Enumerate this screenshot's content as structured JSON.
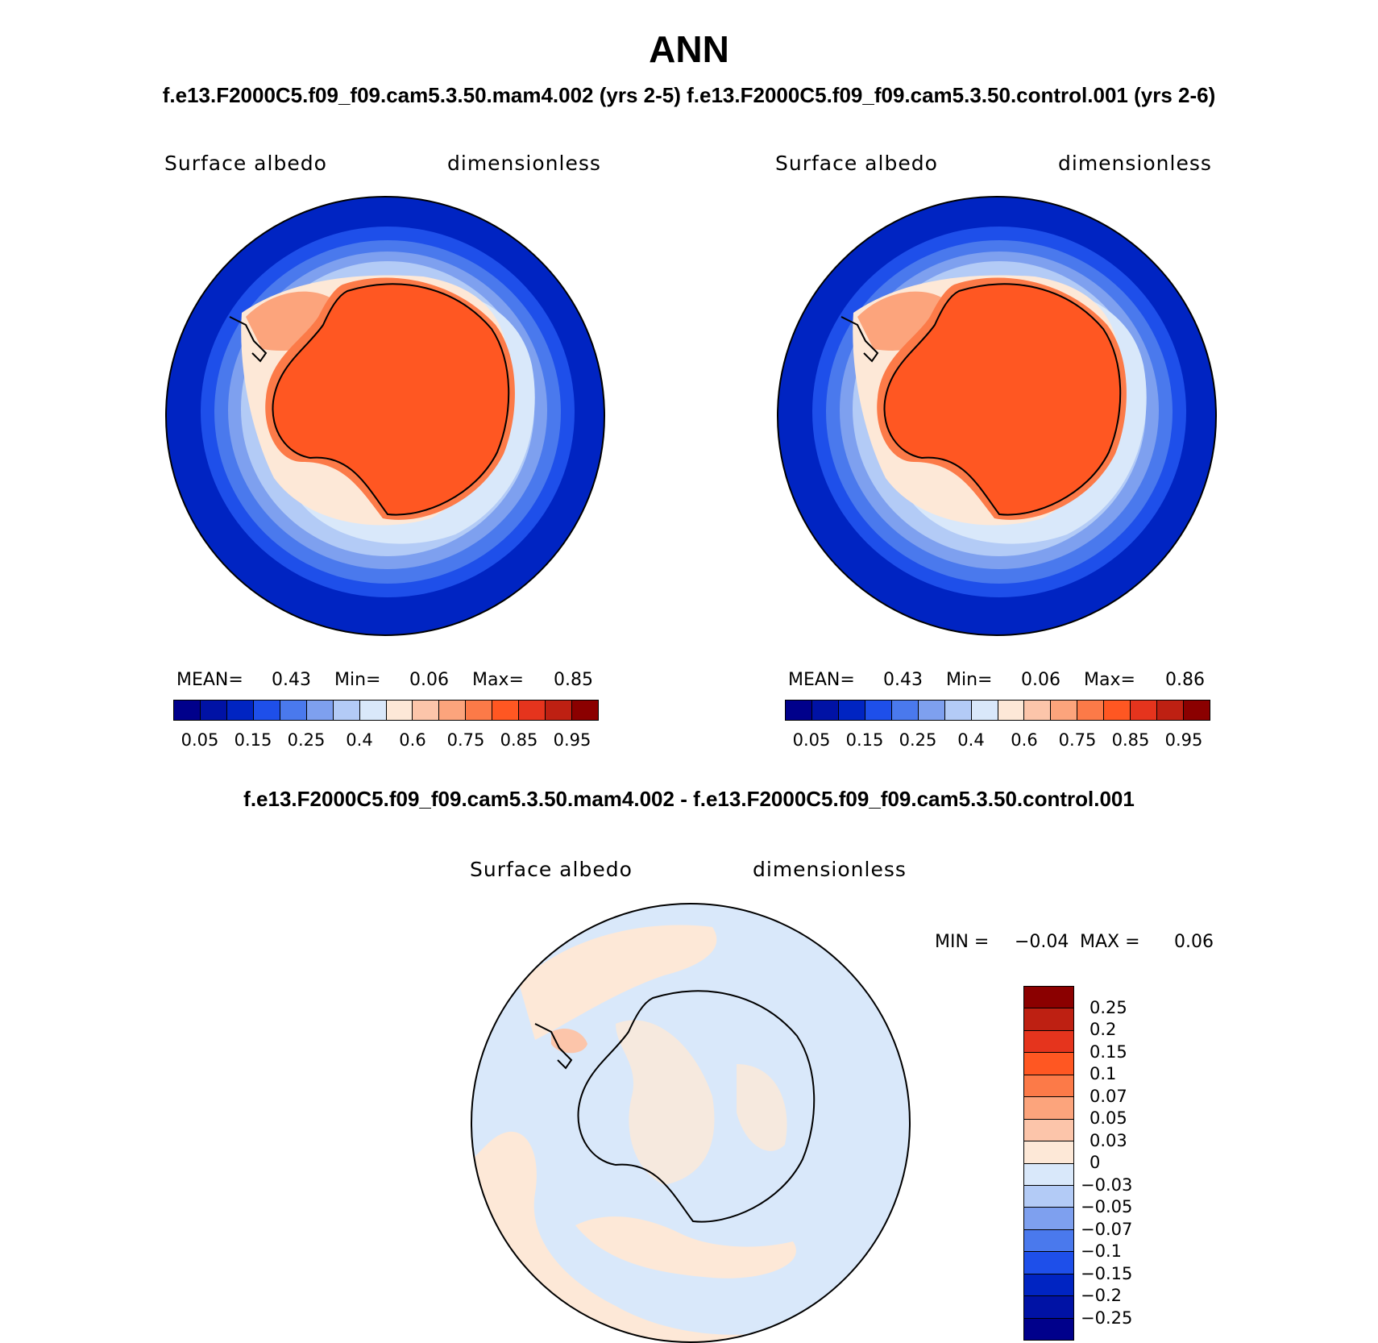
{
  "title": "ANN",
  "case_line": "f.e13.F2000C5.f09_f09.cam5.3.50.mam4.002 (yrs 2-5) f.e13.F2000C5.f09_f09.cam5.3.50.control.001 (yrs 2-6)",
  "diff_title": "f.e13.F2000C5.f09_f09.cam5.3.50.mam4.002 - f.e13.F2000C5.f09_f09.cam5.3.50.control.001",
  "colors": {
    "ocean": "#0024c2",
    "ice": "#ff5722",
    "diff_background": "#d9e8fa",
    "diff_positive": "#fde8d7"
  },
  "panels": [
    {
      "variable": "Surface albedo",
      "units": "dimensionless",
      "mean_label": "MEAN=",
      "mean": "0.43",
      "min_label": "Min=",
      "min": "0.06",
      "max_label": "Max=",
      "max": "0.85"
    },
    {
      "variable": "Surface albedo",
      "units": "dimensionless",
      "mean_label": "MEAN=",
      "mean": "0.43",
      "min_label": "Min=",
      "min": "0.06",
      "max_label": "Max=",
      "max": "0.86"
    }
  ],
  "diff_panel": {
    "variable": "Surface albedo",
    "units": "dimensionless",
    "min_label": "MIN =",
    "min": "−0.04",
    "max_label": "MAX =",
    "max": "0.06"
  },
  "colorbar": {
    "colors": [
      "#00008b",
      "#0012a5",
      "#0024c2",
      "#1e4fea",
      "#4a79ed",
      "#7ea0ef",
      "#b3cbf6",
      "#d9e8fa",
      "#fde8d7",
      "#fcc5aa",
      "#fca47c",
      "#fc7a48",
      "#ff5722",
      "#e5341d",
      "#be2012",
      "#8b0000"
    ],
    "tick_labels": [
      "0.05",
      "0.15",
      "0.25",
      "0.4",
      "0.6",
      "0.75",
      "0.85",
      "0.95"
    ]
  },
  "diff_colorbar": {
    "colors": [
      "#8b0000",
      "#be2012",
      "#e5341d",
      "#ff5722",
      "#fc7a48",
      "#fca47c",
      "#fcc5aa",
      "#fde8d7",
      "#d9e8fa",
      "#b3cbf6",
      "#7ea0ef",
      "#4a79ed",
      "#1e4fea",
      "#0024c2",
      "#0012a5",
      "#00008b"
    ],
    "tick_labels": [
      "0.25",
      "0.2",
      "0.15",
      "0.1",
      "0.07",
      "0.05",
      "0.03",
      "0",
      "−0.03",
      "−0.05",
      "−0.07",
      "−0.1",
      "−0.15",
      "−0.2",
      "−0.25"
    ]
  }
}
